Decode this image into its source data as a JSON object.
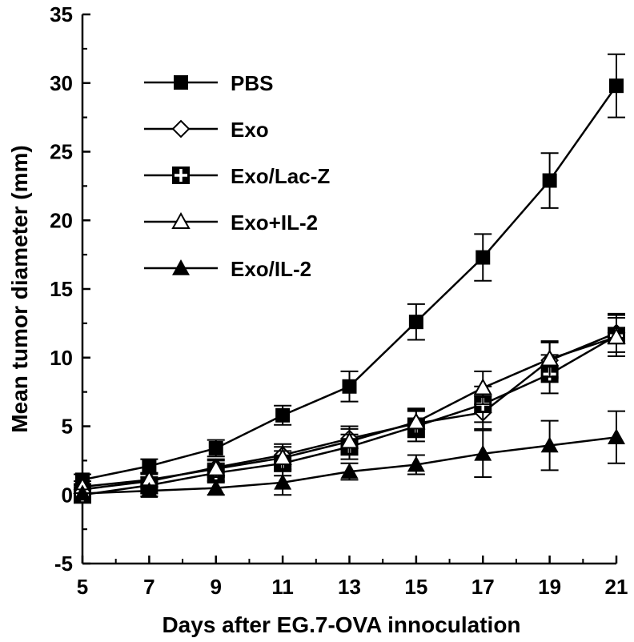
{
  "chart_data": {
    "type": "line",
    "title": "",
    "xlabel": "Days after EG.7-OVA innoculation",
    "ylabel": "Mean tumor diameter (mm)",
    "x": [
      5,
      7,
      9,
      11,
      13,
      15,
      17,
      19,
      21
    ],
    "xlim": [
      5,
      21
    ],
    "ylim": [
      -5,
      35
    ],
    "xticks": [
      "5",
      "7",
      "9",
      "11",
      "13",
      "15",
      "17",
      "19",
      "21"
    ],
    "yticks": [
      "-5",
      "0",
      "5",
      "10",
      "15",
      "20",
      "25",
      "30",
      "35"
    ],
    "grid": false,
    "legend_position": "top-left",
    "series": [
      {
        "name": "PBS",
        "marker": "filled-square",
        "values": [
          1.1,
          2.1,
          3.4,
          5.8,
          7.9,
          12.6,
          17.3,
          22.9,
          29.8
        ],
        "errors": [
          0.4,
          0.5,
          0.6,
          0.7,
          1.1,
          1.3,
          1.7,
          2.0,
          2.3
        ]
      },
      {
        "name": "Exo",
        "marker": "open-diamond",
        "values": [
          0.4,
          1.0,
          2.0,
          2.9,
          4.1,
          5.2,
          6.0,
          9.8,
          11.8
        ],
        "errors": [
          0.4,
          0.5,
          0.6,
          0.8,
          0.9,
          1.0,
          1.2,
          1.3,
          1.4
        ]
      },
      {
        "name": "Exo/Lac-Z",
        "marker": "square-cross",
        "values": [
          0.0,
          0.7,
          1.6,
          2.3,
          3.5,
          5.0,
          6.6,
          8.8,
          11.6
        ],
        "errors": [
          0.5,
          0.6,
          0.7,
          0.9,
          0.9,
          1.1,
          1.3,
          1.4,
          1.5
        ]
      },
      {
        "name": "Exo+IL-2",
        "marker": "open-triangle",
        "values": [
          0.6,
          1.1,
          1.9,
          2.7,
          3.9,
          5.3,
          7.8,
          9.9,
          11.5
        ],
        "errors": [
          0.4,
          0.5,
          0.6,
          0.8,
          0.9,
          1.0,
          1.2,
          1.3,
          1.4
        ]
      },
      {
        "name": "Exo/IL-2",
        "marker": "filled-triangle",
        "values": [
          0.1,
          0.3,
          0.5,
          0.9,
          1.7,
          2.2,
          3.0,
          3.6,
          4.2
        ],
        "errors": [
          0.3,
          0.4,
          0.5,
          0.9,
          0.6,
          0.7,
          1.7,
          1.8,
          1.9
        ]
      }
    ]
  }
}
